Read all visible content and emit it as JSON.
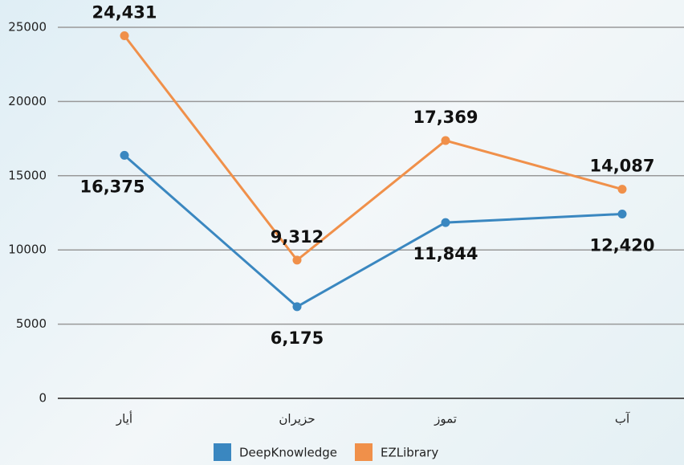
{
  "chart_data": {
    "type": "line",
    "categories": [
      "أيار",
      "حزيران",
      "تموز",
      "آب"
    ],
    "series": [
      {
        "name": "DeepKnowledge",
        "color": "#3a87c0",
        "values": [
          16375,
          6175,
          11844,
          12420
        ],
        "value_labels": [
          "16,375",
          "6,175",
          "11,844",
          "12,420"
        ]
      },
      {
        "name": "EZLibrary",
        "color": "#f0904a",
        "values": [
          24431,
          9312,
          17369,
          14087
        ],
        "value_labels": [
          "24,431",
          "9,312",
          "17,369",
          "14,087"
        ]
      }
    ],
    "ylim": [
      0,
      25000
    ],
    "yticks": [
      0,
      5000,
      10000,
      15000,
      20000,
      25000
    ],
    "grid": true
  }
}
